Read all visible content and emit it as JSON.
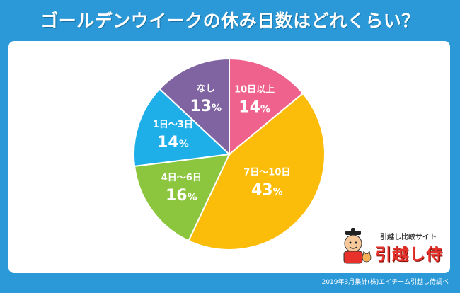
{
  "title": "ゴールデンウイークの休み日数はどれくらい？",
  "chart_data": {
    "type": "pie",
    "start_angle_deg": 0,
    "direction": "clockwise",
    "slices": [
      {
        "label": "10日以上",
        "value": 14,
        "value_text": "14",
        "unit": "%",
        "color": "#f0628e"
      },
      {
        "label": "7日～10日",
        "value": 43,
        "value_text": "43",
        "unit": "%",
        "color": "#fbbd0a"
      },
      {
        "label": "4日～6日",
        "value": 16,
        "value_text": "16",
        "unit": "%",
        "color": "#8cc63f"
      },
      {
        "label": "1日～3日",
        "value": 14,
        "value_text": "14",
        "unit": "%",
        "color": "#1eaee8"
      },
      {
        "label": "なし",
        "value": 13,
        "value_text": "13",
        "unit": "%",
        "color": "#8064a2"
      }
    ]
  },
  "logo": {
    "subtitle": "引越し比較サイト",
    "name": "引越し侍"
  },
  "footer": "2019年3月集計(株)エイチーム引越し侍調べ"
}
